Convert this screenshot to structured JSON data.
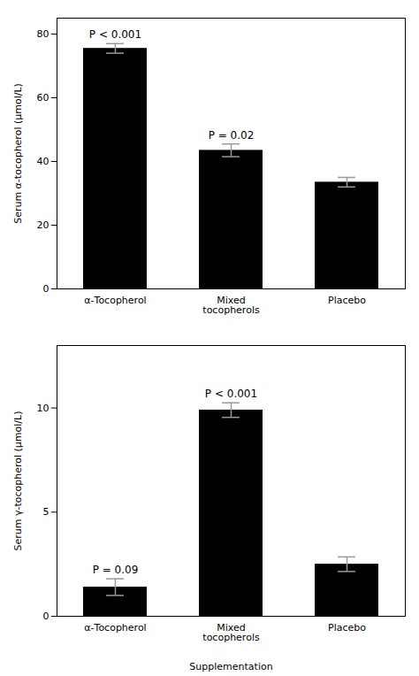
{
  "chart_data": [
    {
      "type": "bar",
      "categories": [
        "α-Tocopherol",
        "Mixed\ntocopherols",
        "Placebo"
      ],
      "values": [
        75.5,
        43.5,
        33.5
      ],
      "errors": [
        1.5,
        2.0,
        1.5
      ],
      "color": "#000000",
      "ylim": [
        0,
        85
      ],
      "yticks": [
        0,
        20,
        40,
        60,
        80
      ],
      "ylabel": "Serum α-tocopherol (μmol/L)",
      "annotations": [
        {
          "text": "P < 0.001",
          "category": "α-Tocopherol"
        },
        {
          "text": "P = 0.02",
          "category": "Mixed\ntocopherols"
        }
      ]
    },
    {
      "type": "bar",
      "categories": [
        "α-Tocopherol",
        "Mixed\ntocopherols",
        "Placebo"
      ],
      "values": [
        1.4,
        9.9,
        2.5
      ],
      "errors": [
        0.4,
        0.35,
        0.35
      ],
      "color": "#000000",
      "ylim": [
        0,
        13
      ],
      "yticks": [
        0,
        5,
        10
      ],
      "ylabel": "Serum γ-tocopherol (μmol/L)",
      "xlabel": "Supplementation",
      "annotations": [
        {
          "text": "P = 0.09",
          "category": "α-Tocopherol"
        },
        {
          "text": "P < 0.001",
          "category": "Mixed\ntocopherols"
        }
      ]
    }
  ]
}
